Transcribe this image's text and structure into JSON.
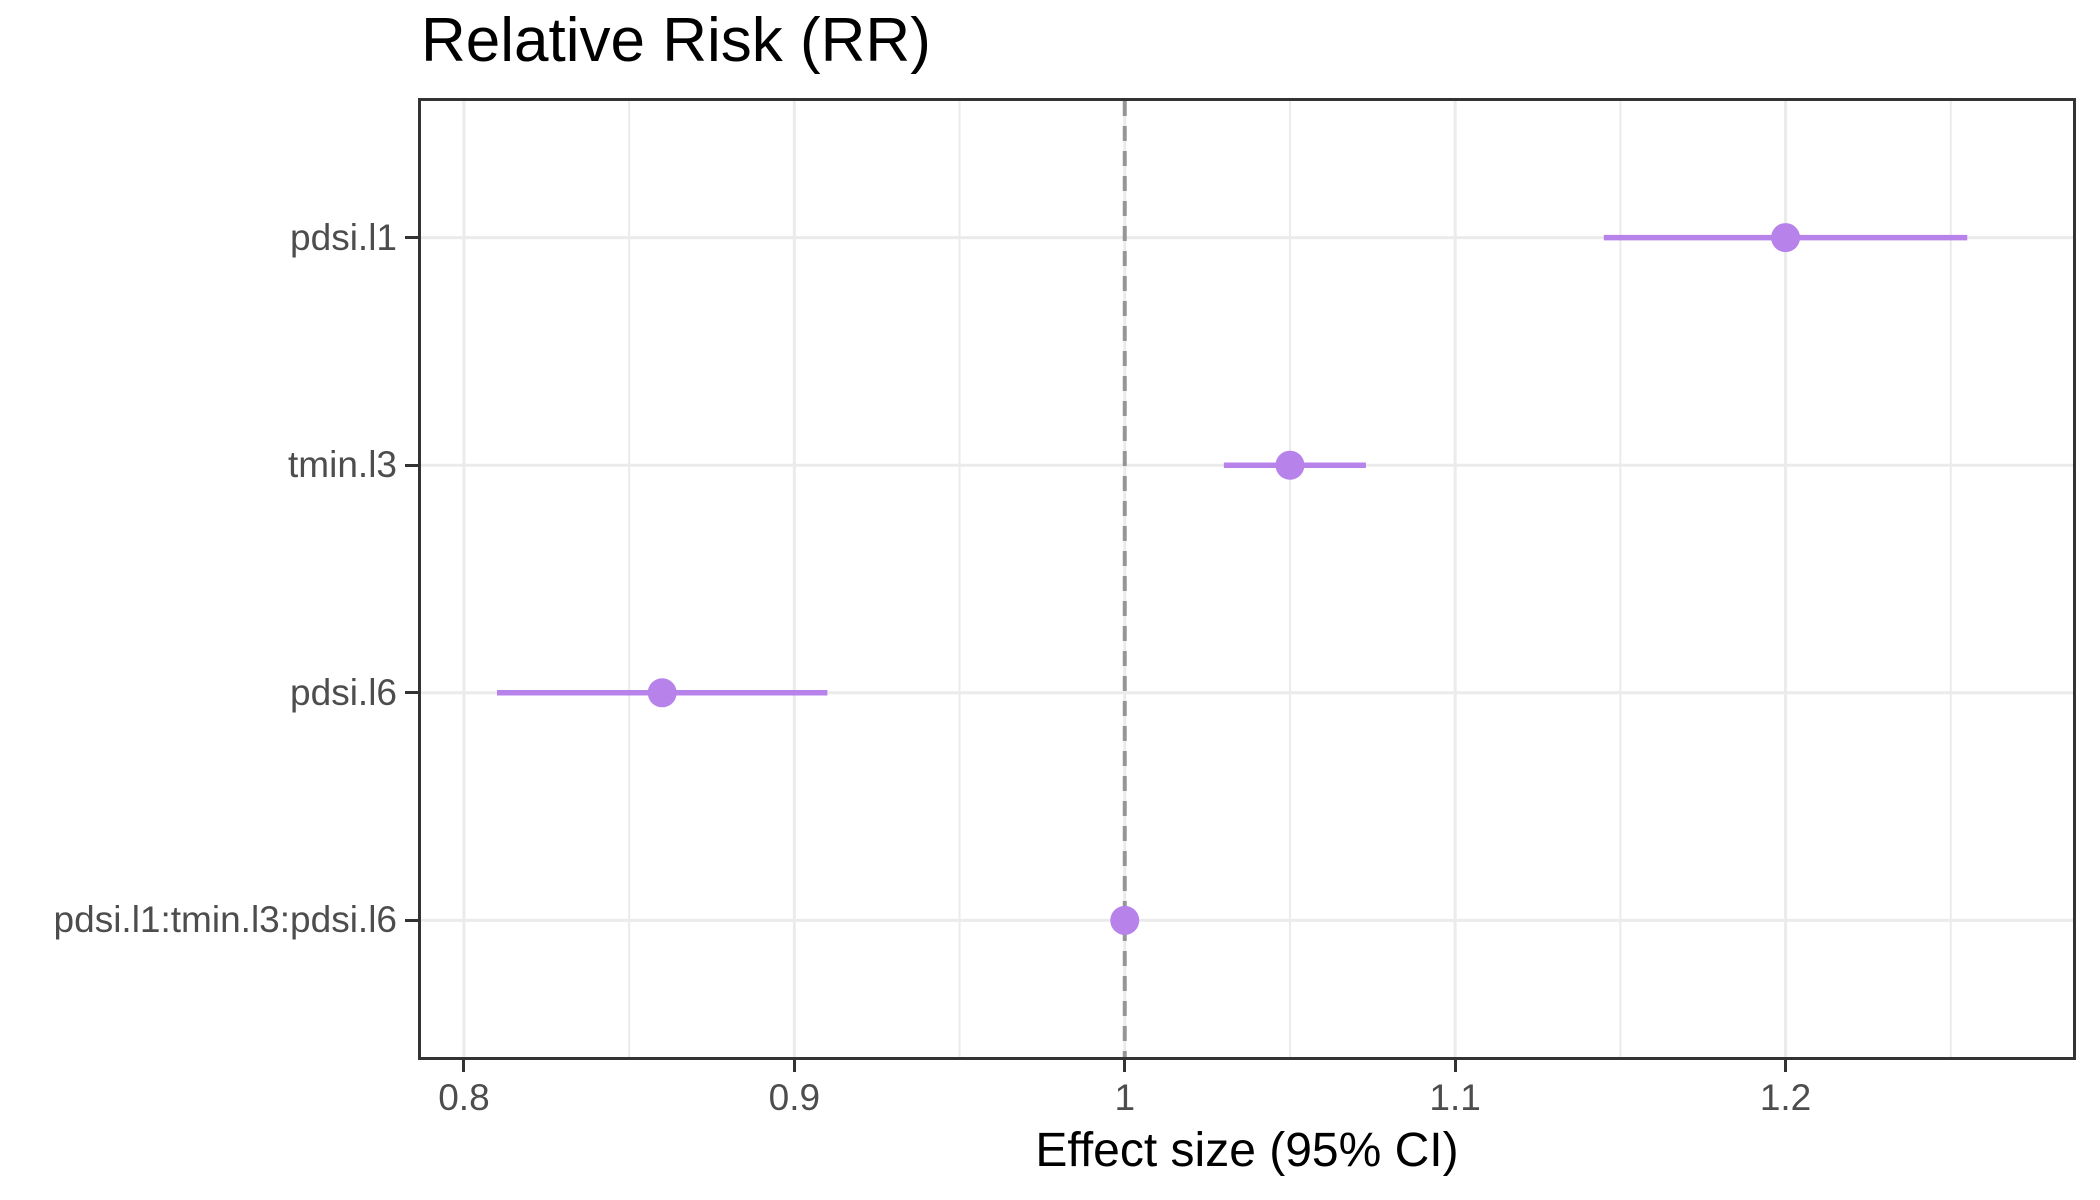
{
  "chart_data": {
    "type": "scatter",
    "subtype": "forest-plot",
    "title": "Relative Risk (RR)",
    "xlabel": "Effect size (95% CI)",
    "ylabel": "",
    "rows": [
      {
        "label": "pdsi.l1",
        "rr": 1.2,
        "ci_low": 1.145,
        "ci_high": 1.255
      },
      {
        "label": "tmin.l3",
        "rr": 1.05,
        "ci_low": 1.03,
        "ci_high": 1.073
      },
      {
        "label": "pdsi.l6",
        "rr": 0.86,
        "ci_low": 0.81,
        "ci_high": 0.91
      },
      {
        "label": "pdsi.l1:tmin.l3:pdsi.l6",
        "rr": 1.0,
        "ci_low": 0.998,
        "ci_high": 1.001
      }
    ],
    "x_ticks": [
      0.8,
      0.9,
      1,
      1.1,
      1.2
    ],
    "x_tick_labels": [
      "0.8",
      "0.9",
      "1",
      "1.1",
      "1.2"
    ],
    "x_minor_ticks": [
      0.85,
      0.95,
      1.05,
      1.15,
      1.25
    ],
    "xlim": [
      0.787,
      1.287
    ],
    "reference_line": 1,
    "grid": true,
    "legend": false,
    "colors": {
      "point": "#b783eb",
      "ci_line": "#b783eb",
      "reference_line": "#969696",
      "gridline": "#ebebeb",
      "panel_border": "#333333",
      "tick_text": "#4d4d4d",
      "title_text": "#000000"
    }
  }
}
